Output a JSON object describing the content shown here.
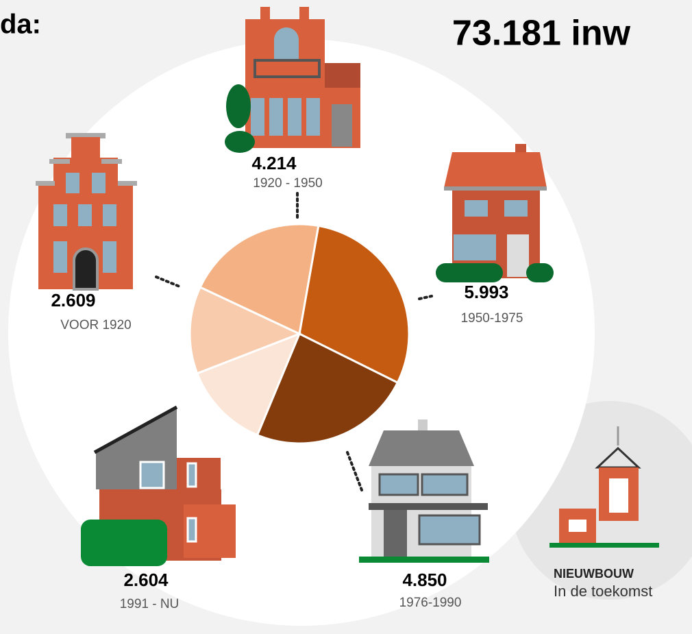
{
  "chart_data": {
    "type": "pie",
    "title": "73.181 inw",
    "caption": "da:",
    "categories": [
      "1950-1975",
      "1976-1990",
      "1991 - NU",
      "VOOR 1920",
      "1920 - 1950"
    ],
    "values": [
      5993,
      4850,
      2604,
      2609,
      4214
    ],
    "value_labels": [
      "5.993",
      "4.850",
      "2.604",
      "2.609",
      "4.214"
    ],
    "colors": [
      "#c55a11",
      "#843c0c",
      "#fbe5d6",
      "#f8cbad",
      "#f4b183"
    ],
    "annotations": [
      "NIEUWBOUW",
      "In de toekomst"
    ]
  }
}
